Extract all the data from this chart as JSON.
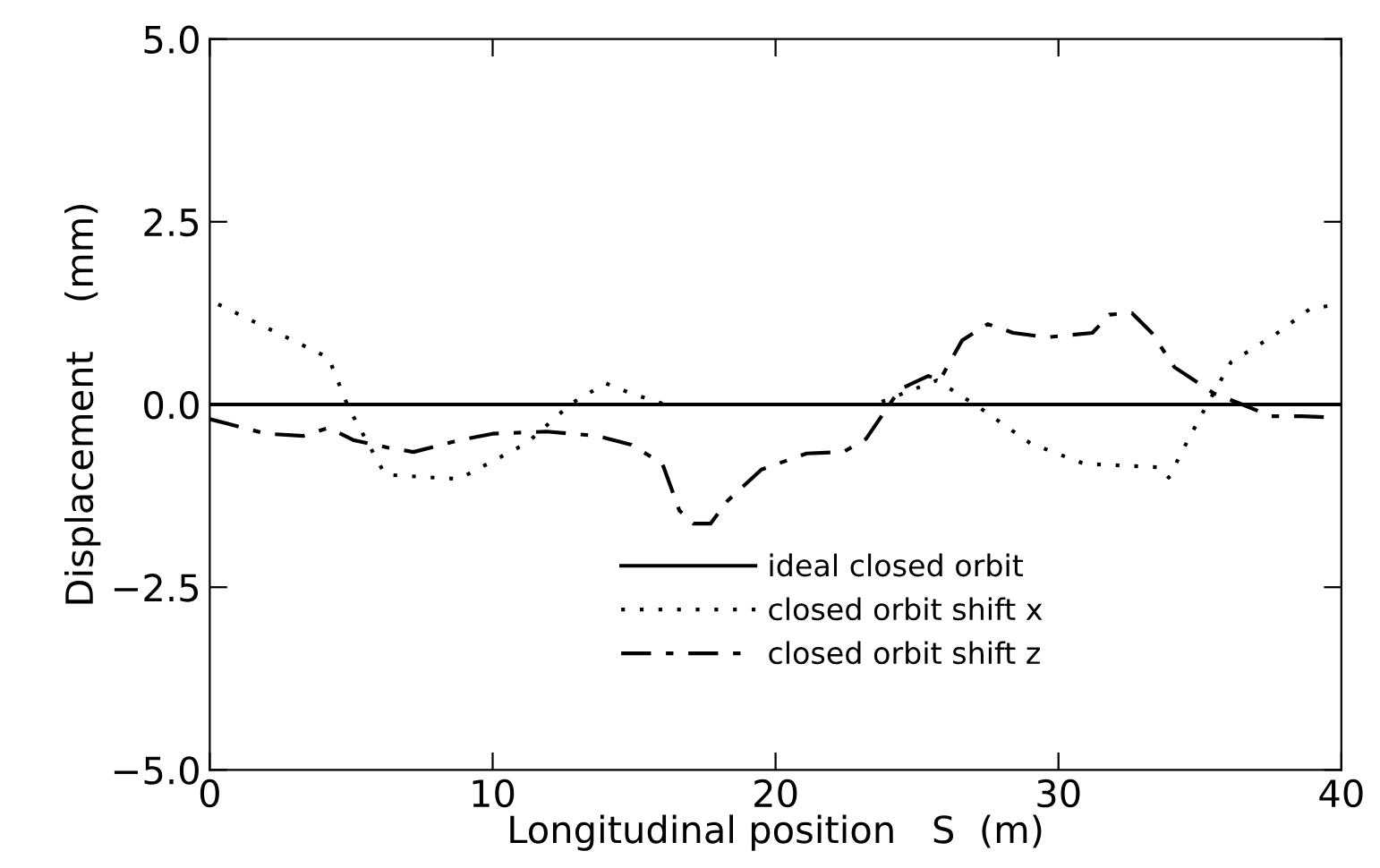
{
  "chart_data": {
    "type": "line",
    "xlabel": "Longitudinal position   S  (m)",
    "ylabel": "Displacement    (mm)",
    "xlim": [
      0,
      40
    ],
    "ylim": [
      -5,
      5
    ],
    "xticks": [
      0,
      10,
      20,
      30,
      40
    ],
    "yticks": [
      {
        "value": -5,
        "label": "−5.0"
      },
      {
        "value": -2.5,
        "label": "−2.5"
      },
      {
        "value": 0,
        "label": "0.0"
      },
      {
        "value": 2.5,
        "label": "2.5"
      },
      {
        "value": 5,
        "label": "5.0"
      }
    ],
    "grid": false,
    "legend": "bottom",
    "marker": "none",
    "series": [
      {
        "name": "ideal closed orbit",
        "color": "#000000",
        "line_style": "solid",
        "x": [
          0,
          40
        ],
        "values": [
          0,
          0
        ]
      },
      {
        "name": "closed orbit shift x",
        "color": "#000000",
        "line_style": "dotted",
        "x": [
          0.3,
          4.2,
          4.9,
          6.2,
          8.8,
          11.2,
          12.8,
          14.0,
          14.9,
          16.1,
          23.5,
          25.7,
          27.2,
          29.0,
          30.9,
          33.6,
          33.9,
          34.6,
          35.2,
          36.1,
          37.6,
          38.9,
          39.9
        ],
        "values": [
          1.37,
          0.64,
          -0.04,
          -0.96,
          -1.02,
          -0.53,
          0.02,
          0.29,
          0.15,
          0.0,
          0.0,
          0.33,
          -0.04,
          -0.53,
          -0.81,
          -0.86,
          -1.0,
          -0.47,
          -0.04,
          0.58,
          0.94,
          1.31,
          1.37
        ]
      },
      {
        "name": "closed orbit shift z",
        "color": "#000000",
        "line_style": "dashed",
        "x": [
          0,
          2.0,
          3.3,
          4.2,
          5.1,
          6.3,
          7.2,
          8.8,
          10.0,
          11.9,
          13.7,
          14.9,
          16.0,
          16.6,
          17.1,
          17.7,
          18.3,
          19.5,
          21.1,
          22.4,
          23.2,
          24.4,
          25.4,
          25.8,
          26.6,
          27.5,
          28.4,
          29.6,
          31.2,
          31.8,
          32.6,
          33.3,
          34.1,
          35.5,
          36.5,
          37.5,
          38.6,
          39.8
        ],
        "values": [
          -0.2,
          -0.4,
          -0.43,
          -0.32,
          -0.49,
          -0.59,
          -0.65,
          -0.49,
          -0.4,
          -0.37,
          -0.43,
          -0.55,
          -0.81,
          -1.45,
          -1.63,
          -1.63,
          -1.32,
          -0.89,
          -0.67,
          -0.65,
          -0.47,
          0.21,
          0.39,
          0.33,
          0.88,
          1.1,
          0.98,
          0.92,
          0.98,
          1.23,
          1.25,
          0.98,
          0.51,
          0.15,
          0.0,
          -0.16,
          -0.16,
          -0.18
        ]
      }
    ]
  }
}
